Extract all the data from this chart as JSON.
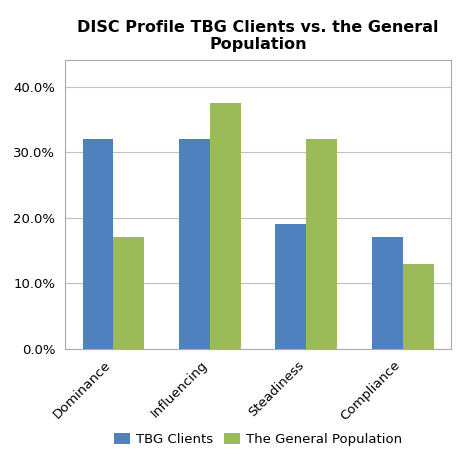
{
  "title": "DISC Profile TBG Clients vs. the General\nPopulation",
  "categories": [
    "Dominance",
    "Influencing",
    "Steadiness",
    "Compliance"
  ],
  "tbg_clients": [
    0.32,
    0.32,
    0.19,
    0.17
  ],
  "general_population": [
    0.17,
    0.375,
    0.32,
    0.13
  ],
  "bar_color_tbg": "#4E81BD",
  "bar_color_genpop": "#9BBB59",
  "legend_labels": [
    "TBG Clients",
    "The General Population"
  ],
  "ylim": [
    0.0,
    0.44
  ],
  "yticks": [
    0.0,
    0.1,
    0.2,
    0.3,
    0.4
  ],
  "ytick_labels": [
    "0.0%",
    "10.0%",
    "20.0%",
    "30.0%",
    "40.0%"
  ],
  "background_color": "#ffffff",
  "title_fontsize": 11.5,
  "tick_fontsize": 9.5,
  "legend_fontsize": 9.5,
  "bar_width": 0.32,
  "grid_color": "#c0c0c0"
}
